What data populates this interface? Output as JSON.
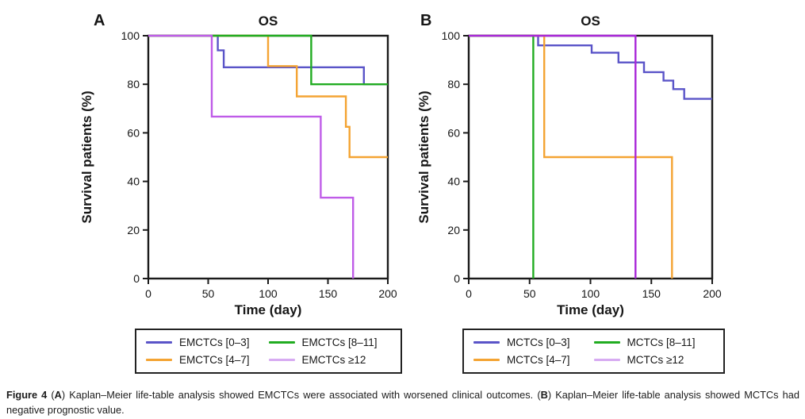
{
  "figure": {
    "panels": [
      {
        "label": "A"
      },
      {
        "label": "B"
      }
    ],
    "legends": [
      {
        "items": [
          {
            "label": "EMCTCs [0–3]",
            "color": "#5a54c8"
          },
          {
            "label": "EMCTCs [8–11]",
            "color": "#21ac21"
          },
          {
            "label": "EMCTCs [4–7]",
            "color": "#f4a433"
          },
          {
            "label": "EMCTCs ≥12",
            "color": "#d7abf2"
          }
        ]
      },
      {
        "items": [
          {
            "label": "MCTCs [0–3]",
            "color": "#5a54c8"
          },
          {
            "label": "MCTCs [8–11]",
            "color": "#21ac21"
          },
          {
            "label": "MCTCs [4–7]",
            "color": "#f4a433"
          },
          {
            "label": "MCTCs ≥12",
            "color": "#d7abf2"
          }
        ]
      }
    ],
    "caption_parts": [
      {
        "text": "Figure 4 ",
        "bold": true
      },
      {
        "text": "(",
        "bold": false
      },
      {
        "text": "A",
        "bold": true
      },
      {
        "text": ") Kaplan–Meier life-table analysis showed EMCTCs were associated with worsened clinical outcomes. (",
        "bold": false
      },
      {
        "text": "B",
        "bold": true
      },
      {
        "text": ") Kaplan–Meier life-table analysis showed MCTCs had negative prognostic value.",
        "bold": false
      }
    ]
  },
  "chart_data": [
    {
      "type": "line",
      "subtype": "kaplan-meier-step",
      "title": "OS",
      "panel": "A",
      "xlabel": "Time (day)",
      "ylabel": "Survival patients (%)",
      "xlim": [
        0,
        200
      ],
      "ylim": [
        0,
        100
      ],
      "xticks": [
        0,
        50,
        100,
        150,
        200
      ],
      "yticks": [
        0,
        20,
        40,
        60,
        80,
        100
      ],
      "grid": false,
      "legend_position": "below",
      "frame_color": "#1b1b1b",
      "series": [
        {
          "name": "EMCTCs [0–3]",
          "color": "#5a54c8",
          "points": [
            [
              0,
              100
            ],
            [
              58,
              100
            ],
            [
              58,
              94
            ],
            [
              63,
              94
            ],
            [
              63,
              87
            ],
            [
              180,
              87
            ],
            [
              180,
              80
            ],
            [
              200,
              80
            ]
          ]
        },
        {
          "name": "EMCTCs [4–7]",
          "color": "#f4a433",
          "points": [
            [
              0,
              100
            ],
            [
              100,
              100
            ],
            [
              100,
              87.5
            ],
            [
              124,
              87.5
            ],
            [
              124,
              75
            ],
            [
              165,
              75
            ],
            [
              165,
              62.5
            ],
            [
              168,
              62.5
            ],
            [
              168,
              50
            ],
            [
              200,
              50
            ]
          ]
        },
        {
          "name": "EMCTCs [8–11]",
          "color": "#21ac21",
          "points": [
            [
              0,
              100
            ],
            [
              136,
              100
            ],
            [
              136,
              80
            ],
            [
              200,
              80
            ]
          ]
        },
        {
          "name": "EMCTCs ≥12",
          "color": "#bf5ce8",
          "points": [
            [
              0,
              100
            ],
            [
              53,
              100
            ],
            [
              53,
              66.7
            ],
            [
              144,
              66.7
            ],
            [
              144,
              33.3
            ],
            [
              171,
              33.3
            ],
            [
              171,
              0
            ]
          ]
        }
      ]
    },
    {
      "type": "line",
      "subtype": "kaplan-meier-step",
      "title": "OS",
      "panel": "B",
      "xlabel": "Time (day)",
      "ylabel": "Survival patients (%)",
      "xlim": [
        0,
        200
      ],
      "ylim": [
        0,
        100
      ],
      "xticks": [
        0,
        50,
        100,
        150,
        200
      ],
      "yticks": [
        0,
        20,
        40,
        60,
        80,
        100
      ],
      "grid": false,
      "legend_position": "below",
      "frame_color": "#1b1b1b",
      "series": [
        {
          "name": "MCTCs [0–3]",
          "color": "#5a54c8",
          "points": [
            [
              0,
              100
            ],
            [
              57,
              100
            ],
            [
              57,
              96
            ],
            [
              101,
              96
            ],
            [
              101,
              93
            ],
            [
              123,
              93
            ],
            [
              123,
              89
            ],
            [
              144,
              89
            ],
            [
              144,
              85
            ],
            [
              160,
              85
            ],
            [
              160,
              81.5
            ],
            [
              168,
              81.5
            ],
            [
              168,
              78
            ],
            [
              177,
              78
            ],
            [
              177,
              74
            ],
            [
              200,
              74
            ]
          ]
        },
        {
          "name": "MCTCs [4–7]",
          "color": "#f4a433",
          "points": [
            [
              0,
              100
            ],
            [
              62,
              100
            ],
            [
              62,
              50
            ],
            [
              167,
              50
            ],
            [
              167,
              0
            ]
          ]
        },
        {
          "name": "MCTCs [8–11]",
          "color": "#21ac21",
          "points": [
            [
              0,
              100
            ],
            [
              53,
              100
            ],
            [
              53,
              0
            ]
          ]
        },
        {
          "name": "MCTCs ≥12",
          "color": "#a928d8",
          "points": [
            [
              0,
              100
            ],
            [
              137,
              100
            ],
            [
              137,
              0
            ]
          ]
        }
      ]
    }
  ]
}
